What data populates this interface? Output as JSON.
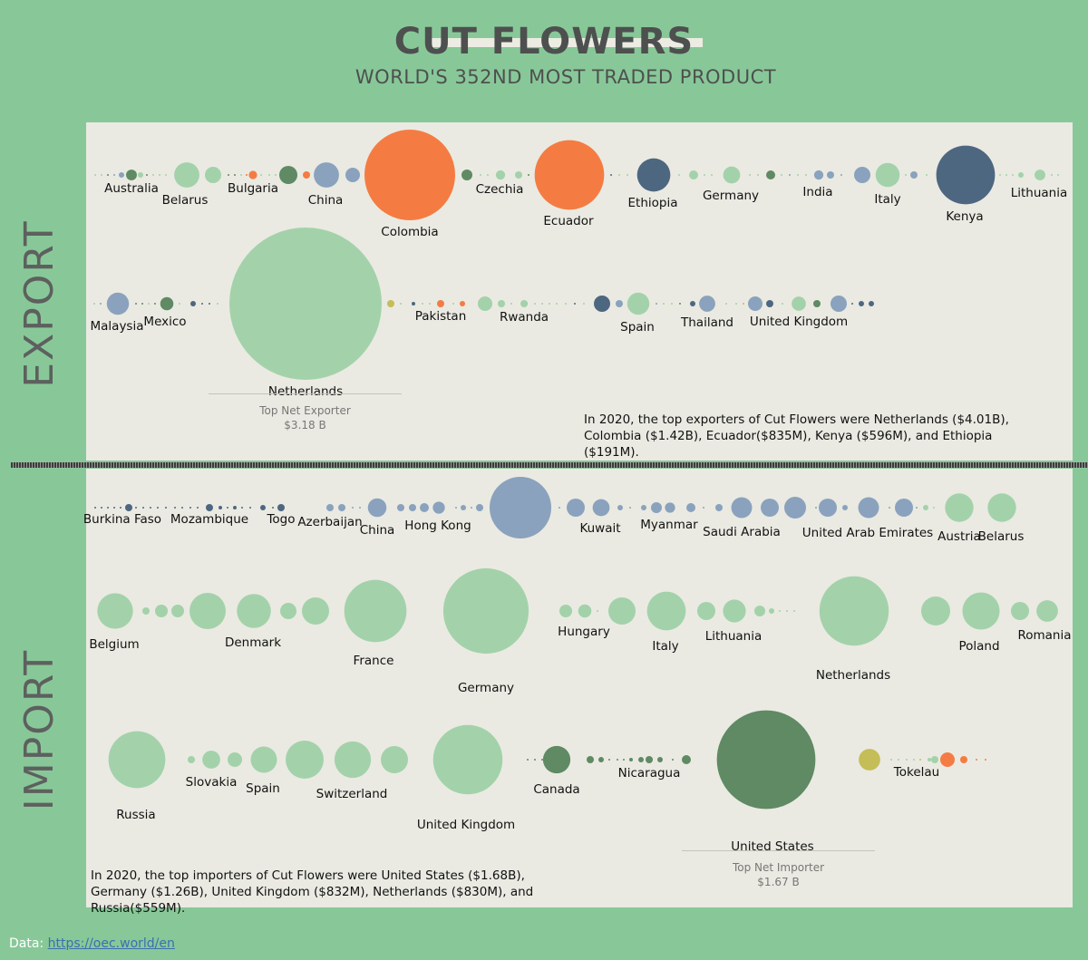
{
  "header": {
    "title": "CUT FLOWERS",
    "subtitle": "WORLD'S 352ND MOST TRADED PRODUCT"
  },
  "sections": {
    "export_label": "EXPORT",
    "import_label": "IMPORT"
  },
  "colors": {
    "background": "#88c898",
    "panel": "#eaeae2",
    "light_green": "#a3d2aa",
    "dark_green": "#5f8a63",
    "orange": "#f47c43",
    "navy": "#4e6781",
    "steel_blue": "#8aa2bd",
    "olive": "#c5bd57"
  },
  "export": {
    "top_net": {
      "caption": "Top Net Exporter",
      "value": "$3.18 B"
    },
    "summary": "In 2020, the top exporters of Cut Flowers were Netherlands ($4.01B), Colombia ($1.42B), Ecuador($835M), Kenya ($596M), and Ethiopia ($191M)."
  },
  "import": {
    "top_net": {
      "caption": "Top Net Importer",
      "value": "$1.67 B"
    },
    "summary": "In 2020, the top importers of Cut Flowers were United States ($1.68B), Germany ($1.26B), United Kingdom ($832M), Netherlands ($830M), and Russia($559M)."
  },
  "source": {
    "label": "Data:",
    "link": "https://oec.world/en"
  },
  "chart_data": [
    {
      "type": "scatter",
      "title": "EXPORT",
      "unit": "USD",
      "series": [
        {
          "row": 1,
          "points": [
            {
              "label": "Australia",
              "value": 20000000
            },
            {
              "label": "Belarus",
              "value": 110000000
            },
            {
              "label": "Bulgaria",
              "value": 12000000
            },
            {
              "label": "China",
              "value": 110000000
            },
            {
              "label": "Colombia",
              "value": 1420000000
            },
            {
              "label": "Czechia",
              "value": 15000000
            },
            {
              "label": "Ecuador",
              "value": 835000000
            },
            {
              "label": "Ethiopia",
              "value": 191000000
            },
            {
              "label": "Germany",
              "value": 50000000
            },
            {
              "label": "India",
              "value": 15000000
            },
            {
              "label": "Italy",
              "value": 100000000
            },
            {
              "label": "Kenya",
              "value": 596000000
            },
            {
              "label": "Lithuania",
              "value": 20000000
            }
          ]
        },
        {
          "row": 2,
          "points": [
            {
              "label": "Malaysia",
              "value": 85000000
            },
            {
              "label": "Mexico",
              "value": 30000000
            },
            {
              "label": "Netherlands",
              "value": 4010000000
            },
            {
              "label": "Pakistan",
              "value": 5000000
            },
            {
              "label": "Rwanda",
              "value": 5000000
            },
            {
              "label": "Spain",
              "value": 85000000
            },
            {
              "label": "Thailand",
              "value": 45000000
            },
            {
              "label": "United Kingdom",
              "value": 35000000
            }
          ]
        }
      ]
    },
    {
      "type": "scatter",
      "title": "IMPORT",
      "unit": "USD",
      "series": [
        {
          "row": 1,
          "points": [
            {
              "label": "Burkina Faso",
              "value": 1000000
            },
            {
              "label": "Mozambique",
              "value": 1000000
            },
            {
              "label": "Togo",
              "value": 1000000
            },
            {
              "label": "Azerbaijan",
              "value": 5000000
            },
            {
              "label": "China",
              "value": 60000000
            },
            {
              "label": "Hong Kong",
              "value": 25000000
            },
            {
              "label": "Kuwait",
              "value": 50000000
            },
            {
              "label": "Myanmar",
              "value": 18000000
            },
            {
              "label": "Saudi Arabia",
              "value": 75000000
            },
            {
              "label": "United Arab Emirates",
              "value": 75000000
            },
            {
              "label": "Austria",
              "value": 140000000
            },
            {
              "label": "Belarus",
              "value": 140000000
            }
          ]
        },
        {
          "row": 2,
          "points": [
            {
              "label": "Belgium",
              "value": 220000000
            },
            {
              "label": "Denmark",
              "value": 200000000
            },
            {
              "label": "France",
              "value": 670000000
            },
            {
              "label": "Germany",
              "value": 1260000000
            },
            {
              "label": "Hungary",
              "value": 30000000
            },
            {
              "label": "Italy",
              "value": 260000000
            },
            {
              "label": "Lithuania",
              "value": 90000000
            },
            {
              "label": "Netherlands",
              "value": 830000000
            },
            {
              "label": "Poland",
              "value": 240000000
            },
            {
              "label": "Romania",
              "value": 80000000
            }
          ]
        },
        {
          "row": 3,
          "points": [
            {
              "label": "Russia",
              "value": 559000000
            },
            {
              "label": "Slovakia",
              "value": 55000000
            },
            {
              "label": "Spain",
              "value": 120000000
            },
            {
              "label": "Switzerland",
              "value": 230000000
            },
            {
              "label": "United Kingdom",
              "value": 832000000
            },
            {
              "label": "Canada",
              "value": 130000000
            },
            {
              "label": "Nicaragua",
              "value": 5000000
            },
            {
              "label": "United States",
              "value": 1680000000
            },
            {
              "label": "Tokelau",
              "value": 80000000
            }
          ]
        }
      ]
    }
  ]
}
